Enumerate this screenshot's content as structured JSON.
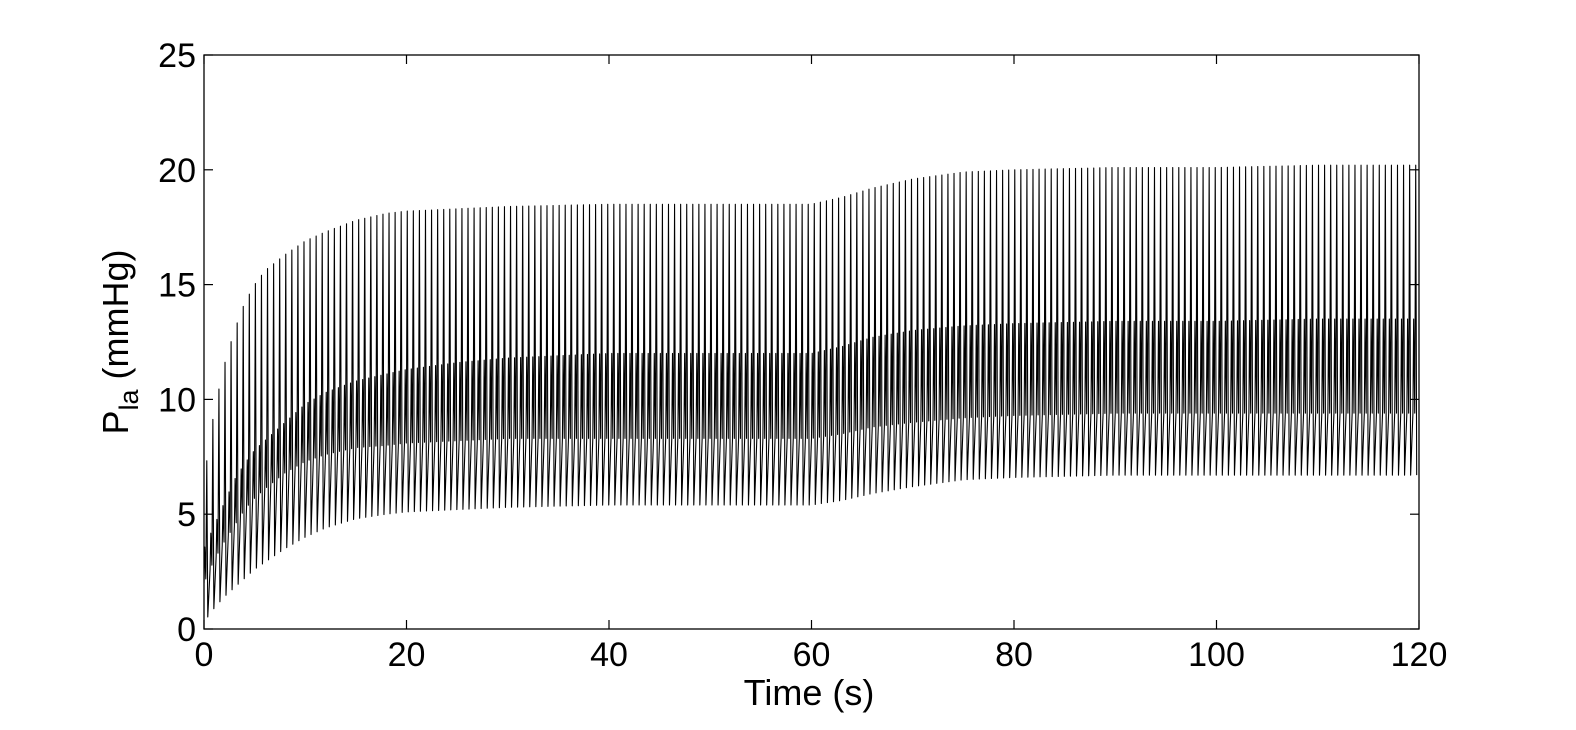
{
  "chart_data": {
    "type": "line",
    "title": "",
    "xlabel": "Time (s)",
    "ylabel_main": "P",
    "ylabel_subscript": "la",
    "ylabel_unit": " (mmHg)",
    "xlim": [
      0,
      120
    ],
    "ylim": [
      0,
      25
    ],
    "xticks": [
      0,
      20,
      40,
      60,
      80,
      100,
      120
    ],
    "yticks": [
      0,
      5,
      10,
      15,
      20,
      25
    ],
    "grid": false,
    "line_color": "#000000",
    "series": [
      {
        "heart_period_s": 0.6,
        "peak_envelope": {
          "t": [
            0,
            1,
            2,
            3,
            4,
            5,
            6,
            8,
            10,
            12,
            15,
            18,
            20,
            25,
            30,
            40,
            50,
            60,
            63,
            66,
            70,
            75,
            80,
            90,
            100,
            110,
            120
          ],
          "v": [
            6.5,
            9.5,
            11.5,
            13.0,
            14.2,
            15.0,
            15.6,
            16.3,
            16.9,
            17.3,
            17.8,
            18.1,
            18.2,
            18.3,
            18.4,
            18.5,
            18.5,
            18.5,
            18.8,
            19.2,
            19.6,
            19.9,
            20.0,
            20.1,
            20.1,
            20.2,
            20.2
          ]
        },
        "plateau_envelope": {
          "t": [
            0,
            1,
            2,
            3,
            4,
            5,
            6,
            8,
            10,
            12,
            15,
            18,
            20,
            25,
            30,
            40,
            50,
            60,
            63,
            66,
            70,
            75,
            80,
            90,
            100,
            110,
            120
          ],
          "v": [
            3.5,
            4.5,
            5.5,
            6.5,
            7.2,
            7.8,
            8.2,
            9.0,
            9.8,
            10.3,
            10.8,
            11.1,
            11.3,
            11.6,
            11.8,
            12.0,
            12.0,
            12.0,
            12.3,
            12.7,
            13.0,
            13.2,
            13.3,
            13.4,
            13.4,
            13.5,
            13.5
          ]
        },
        "mid_envelope": {
          "t": [
            0,
            1,
            2,
            3,
            4,
            5,
            6,
            8,
            10,
            12,
            15,
            18,
            20,
            25,
            30,
            40,
            50,
            60,
            63,
            66,
            70,
            75,
            80,
            90,
            100,
            110,
            120
          ],
          "v": [
            2.0,
            3.0,
            3.8,
            4.5,
            5.2,
            5.7,
            6.1,
            6.8,
            7.3,
            7.6,
            7.9,
            8.0,
            8.1,
            8.2,
            8.3,
            8.3,
            8.3,
            8.3,
            8.5,
            8.8,
            9.0,
            9.2,
            9.3,
            9.4,
            9.4,
            9.4,
            9.4
          ]
        },
        "trough_envelope": {
          "t": [
            0,
            1,
            2,
            3,
            4,
            5,
            6,
            8,
            10,
            12,
            15,
            18,
            20,
            25,
            30,
            40,
            50,
            60,
            63,
            66,
            70,
            75,
            80,
            90,
            100,
            110,
            120
          ],
          "v": [
            0.3,
            0.9,
            1.4,
            1.8,
            2.2,
            2.6,
            2.9,
            3.5,
            4.0,
            4.4,
            4.8,
            5.0,
            5.1,
            5.2,
            5.3,
            5.4,
            5.4,
            5.4,
            5.6,
            5.9,
            6.2,
            6.5,
            6.6,
            6.7,
            6.7,
            6.7,
            6.7
          ]
        }
      }
    ]
  }
}
